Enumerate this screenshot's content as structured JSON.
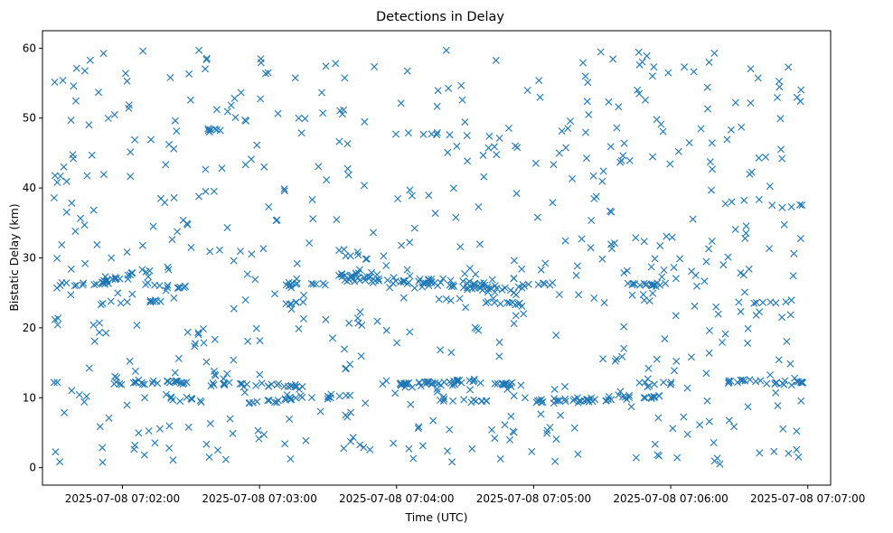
{
  "chart_data": {
    "type": "scatter",
    "title": "Detections in Delay",
    "xlabel": "Time (UTC)",
    "ylabel": "Bistatic Delay (km)",
    "x_is_time": true,
    "xlim": [
      "2025-07-08 07:01:25",
      "2025-07-08 07:07:10"
    ],
    "ylim": [
      -2.5,
      62.5
    ],
    "x_ticks": [
      "2025-07-08 07:02:00",
      "2025-07-08 07:03:00",
      "2025-07-08 07:04:00",
      "2025-07-08 07:05:00",
      "2025-07-08 07:06:00",
      "2025-07-08 07:07:00"
    ],
    "y_ticks": [
      0,
      10,
      20,
      30,
      40,
      50,
      60
    ],
    "grid": false,
    "legend": "none",
    "marker": "x",
    "color": "#1f77b4",
    "time_range": [
      "2025-07-08 07:01:30",
      "2025-07-08 07:06:58"
    ],
    "bands": [
      {
        "start": "2025-07-08 07:01:30",
        "end": "2025-07-08 07:01:52",
        "y0": 25.8,
        "y1": 26.4,
        "n": 8,
        "jitter": 0.35
      },
      {
        "start": "2025-07-08 07:01:50",
        "end": "2025-07-08 07:02:12",
        "y0": 26.5,
        "y1": 28.2,
        "n": 24,
        "jitter": 0.45
      },
      {
        "start": "2025-07-08 07:02:10",
        "end": "2025-07-08 07:02:30",
        "y0": 26.3,
        "y1": 25.6,
        "n": 12,
        "jitter": 0.3
      },
      {
        "start": "2025-07-08 07:01:50",
        "end": "2025-07-08 07:02:18",
        "y0": 23.4,
        "y1": 23.9,
        "n": 10,
        "jitter": 0.25
      },
      {
        "start": "2025-07-08 07:01:55",
        "end": "2025-07-08 07:02:30",
        "y0": 12.0,
        "y1": 12.2,
        "n": 24,
        "jitter": 0.3
      },
      {
        "start": "2025-07-08 07:02:20",
        "end": "2025-07-08 07:02:35",
        "y0": 10.0,
        "y1": 9.6,
        "n": 8,
        "jitter": 0.3
      },
      {
        "start": "2025-07-08 07:02:37",
        "end": "2025-07-08 07:02:47",
        "y0": 48.5,
        "y1": 48.0,
        "n": 6,
        "jitter": 0.2
      },
      {
        "start": "2025-07-08 07:02:37",
        "end": "2025-07-08 07:02:58",
        "y0": 11.8,
        "y1": 12.0,
        "n": 12,
        "jitter": 0.35
      },
      {
        "start": "2025-07-08 07:02:55",
        "end": "2025-07-08 07:03:12",
        "y0": 9.3,
        "y1": 9.6,
        "n": 8,
        "jitter": 0.3
      },
      {
        "start": "2025-07-08 07:02:58",
        "end": "2025-07-08 07:03:20",
        "y0": 12.0,
        "y1": 11.5,
        "n": 16,
        "jitter": 0.35
      },
      {
        "start": "2025-07-08 07:03:10",
        "end": "2025-07-08 07:03:35",
        "y0": 26.0,
        "y1": 26.3,
        "n": 12,
        "jitter": 0.3
      },
      {
        "start": "2025-07-08 07:03:05",
        "end": "2025-07-08 07:03:25",
        "y0": 9.8,
        "y1": 10.1,
        "n": 8,
        "jitter": 0.25
      },
      {
        "start": "2025-07-08 07:03:12",
        "end": "2025-07-08 07:03:20",
        "y0": 23.5,
        "y1": 23.7,
        "n": 5,
        "jitter": 0.2
      },
      {
        "start": "2025-07-08 07:03:28",
        "end": "2025-07-08 07:03:42",
        "y0": 10.0,
        "y1": 10.4,
        "n": 8,
        "jitter": 0.3
      },
      {
        "start": "2025-07-08 07:03:35",
        "end": "2025-07-08 07:04:55",
        "y0": 27.5,
        "y1": 25.4,
        "n": 95,
        "jitter": 0.75
      },
      {
        "start": "2025-07-08 07:04:00",
        "end": "2025-07-08 07:04:35",
        "y0": 12.0,
        "y1": 12.3,
        "n": 40,
        "jitter": 0.4
      },
      {
        "start": "2025-07-08 07:04:05",
        "end": "2025-07-08 07:04:25",
        "y0": 47.8,
        "y1": 47.6,
        "n": 6,
        "jitter": 0.2
      },
      {
        "start": "2025-07-08 07:04:15",
        "end": "2025-07-08 07:04:40",
        "y0": 9.8,
        "y1": 9.5,
        "n": 12,
        "jitter": 0.3
      },
      {
        "start": "2025-07-08 07:04:20",
        "end": "2025-07-08 07:04:55",
        "y0": 24.0,
        "y1": 23.5,
        "n": 12,
        "jitter": 0.4
      },
      {
        "start": "2025-07-08 07:04:35",
        "end": "2025-07-08 07:04:58",
        "y0": 12.0,
        "y1": 11.8,
        "n": 14,
        "jitter": 0.3
      },
      {
        "start": "2025-07-08 07:04:55",
        "end": "2025-07-08 07:05:10",
        "y0": 26.0,
        "y1": 26.3,
        "n": 8,
        "jitter": 0.3
      },
      {
        "start": "2025-07-08 07:05:00",
        "end": "2025-07-08 07:05:35",
        "y0": 9.5,
        "y1": 9.8,
        "n": 28,
        "jitter": 0.3
      },
      {
        "start": "2025-07-08 07:05:30",
        "end": "2025-07-08 07:05:55",
        "y0": 10.0,
        "y1": 10.3,
        "n": 16,
        "jitter": 0.3
      },
      {
        "start": "2025-07-08 07:05:40",
        "end": "2025-07-08 07:05:58",
        "y0": 26.3,
        "y1": 26.1,
        "n": 14,
        "jitter": 0.3
      },
      {
        "start": "2025-07-08 07:05:45",
        "end": "2025-07-08 07:06:02",
        "y0": 11.8,
        "y1": 12.0,
        "n": 8,
        "jitter": 0.3
      },
      {
        "start": "2025-07-08 07:06:25",
        "end": "2025-07-08 07:06:42",
        "y0": 12.3,
        "y1": 12.5,
        "n": 12,
        "jitter": 0.25
      },
      {
        "start": "2025-07-08 07:06:45",
        "end": "2025-07-08 07:06:58",
        "y0": 12.0,
        "y1": 12.3,
        "n": 12,
        "jitter": 0.3
      },
      {
        "start": "2025-07-08 07:06:35",
        "end": "2025-07-08 07:06:52",
        "y0": 23.5,
        "y1": 23.8,
        "n": 6,
        "jitter": 0.2
      },
      {
        "start": "2025-07-08 07:06:48",
        "end": "2025-07-08 07:06:58",
        "y0": 37.2,
        "y1": 37.5,
        "n": 4,
        "jitter": 0.2
      }
    ],
    "background_clutter": {
      "n": 620,
      "y_range": [
        0.5,
        59.8
      ]
    }
  }
}
